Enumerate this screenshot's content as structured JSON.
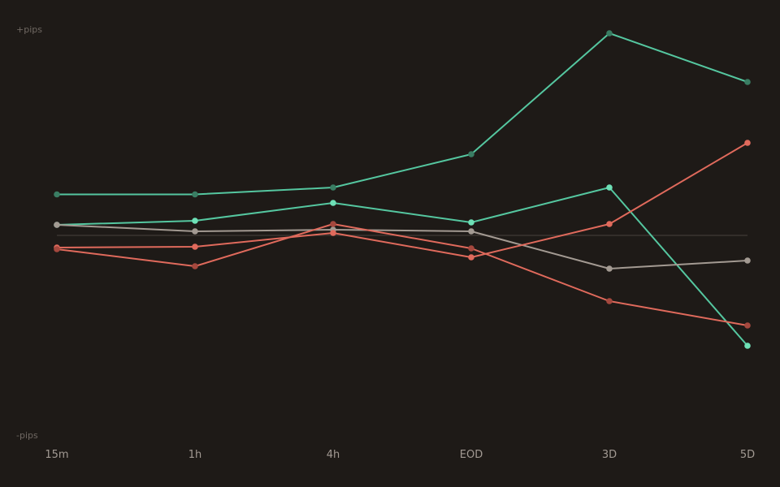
{
  "chart_data": {
    "type": "line",
    "title": "",
    "xlabel": "",
    "ylabel": "",
    "y_top_label": "+pips",
    "y_bottom_label": "-pips",
    "categories": [
      "15m",
      "1h",
      "4h",
      "EOD",
      "3D",
      "5D"
    ],
    "ylim": [
      -100,
      100
    ],
    "zero_line": true,
    "grid": false,
    "legend": "none",
    "series": [
      {
        "color": "#55c7a0",
        "marker_color": "#3a7d63",
        "values": [
          20.2,
          20.2,
          23.6,
          40.0,
          99.6,
          75.6
        ]
      },
      {
        "color": "#55c7a0",
        "marker_color": "#6ee0b6",
        "values": [
          5.2,
          7.2,
          16.0,
          6.4,
          23.6,
          -54.4
        ]
      },
      {
        "color": "#a39a92",
        "marker_color": "#a39a92",
        "values": [
          5.2,
          2.0,
          2.8,
          2.0,
          -16.4,
          -12.4
        ]
      },
      {
        "color": "#e06a5c",
        "marker_color": "#e06a5c",
        "values": [
          -6.0,
          -5.6,
          1.2,
          -10.8,
          5.6,
          45.6
        ]
      },
      {
        "color": "#e06a5c",
        "marker_color": "#a5483e",
        "values": [
          -6.8,
          -15.2,
          5.6,
          -6.4,
          -32.4,
          -44.4
        ]
      }
    ]
  }
}
